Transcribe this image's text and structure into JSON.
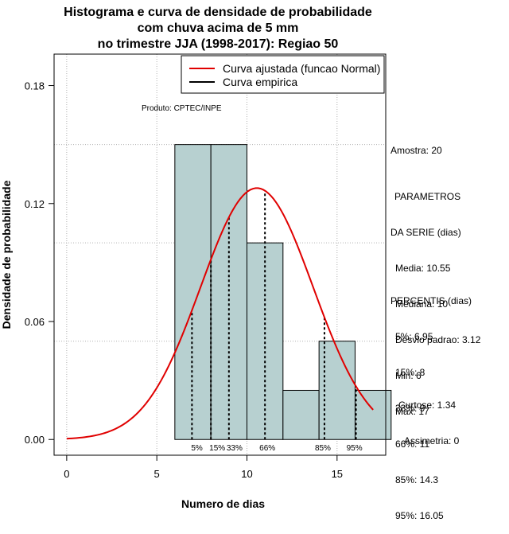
{
  "title_lines": [
    "Histograma e curva de densidade de probabilidade",
    "com chuva acima de 5 mm",
    "no trimestre JJA (1998-2017): Regiao 50"
  ],
  "product_label": "Produto: CPTEC/INPE",
  "sample": "Amostra: 20",
  "stats": {
    "header1": "PARAMETROS",
    "header2": "DA SERIE (dias)",
    "items": [
      "Media: 10.55",
      "Mediana: 10",
      "Desvio padrao: 3.12",
      "Min: 6",
      "Max: 17"
    ]
  },
  "percentiles_text": {
    "header": "PERCENTIS (dias)",
    "items": [
      "5%: 6.95",
      "15%: 8",
      "33%: 9",
      "66%: 11",
      "85%: 14.3",
      "95%: 16.05"
    ]
  },
  "shape": {
    "kurtosis": "Curtose: 1.34",
    "skewness": "Assimetria: 0"
  },
  "colors": {
    "bar_fill": "#b7d0d0",
    "normal_curve": "#e00000",
    "empirical": "#000000",
    "grid": "#b0b0b0"
  },
  "chart_data": {
    "type": "bar",
    "xlabel": "Numero de dias",
    "ylabel": "Densidade de probabilidade",
    "xlim": [
      -0.7,
      17.7
    ],
    "ylim": [
      -0.008,
      0.196
    ],
    "xticks": [
      0,
      5,
      10,
      15
    ],
    "yticks": [
      0.0,
      0.06,
      0.12,
      0.18
    ],
    "ytick_labels": [
      "0.00",
      "0.06",
      "0.12",
      "0.18"
    ],
    "grid": true,
    "grid_x": [
      0,
      5,
      10,
      15
    ],
    "grid_y": [
      0.05,
      0.1,
      0.15
    ],
    "bins": [
      {
        "x0": 6,
        "x1": 8,
        "value": 0.15
      },
      {
        "x0": 8,
        "x1": 10,
        "value": 0.15
      },
      {
        "x0": 10,
        "x1": 12,
        "value": 0.1
      },
      {
        "x0": 12,
        "x1": 14,
        "value": 0.025
      },
      {
        "x0": 14,
        "x1": 16,
        "value": 0.05
      },
      {
        "x0": 16,
        "x1": 18,
        "value": 0.025
      }
    ],
    "normal_curve": {
      "mean": 10.55,
      "sd": 3.12,
      "x_from": 0,
      "x_to": 17
    },
    "percentile_markers": [
      {
        "label": "5%",
        "x": 6.95
      },
      {
        "label": "15%",
        "x": 8
      },
      {
        "label": "33%",
        "x": 9
      },
      {
        "label": "66%",
        "x": 11
      },
      {
        "label": "85%",
        "x": 14.3
      },
      {
        "label": "95%",
        "x": 16.05
      }
    ],
    "legend": {
      "position": "top-right",
      "entries": [
        {
          "label": "Curva ajustada (funcao Normal)",
          "color": "#e00000"
        },
        {
          "label": "Curva empirica",
          "color": "#000000"
        }
      ]
    }
  }
}
